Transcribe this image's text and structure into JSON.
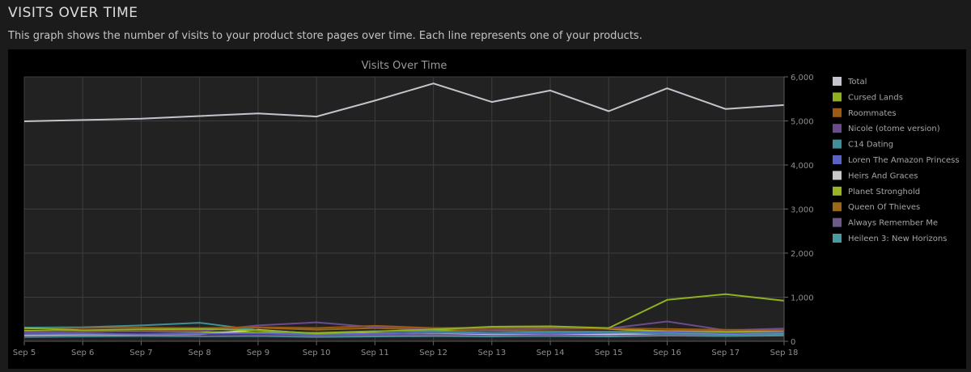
{
  "header": {
    "title": "VISITS OVER TIME",
    "description": "This graph shows the number of visits to your product store pages over time. Each line represents one of your products."
  },
  "chart_data": {
    "type": "line",
    "title": "Visits Over Time",
    "x": [
      "Sep 5",
      "Sep 6",
      "Sep 7",
      "Sep 8",
      "Sep 9",
      "Sep 10",
      "Sep 11",
      "Sep 12",
      "Sep 13",
      "Sep 14",
      "Sep 15",
      "Sep 16",
      "Sep 17",
      "Sep 18"
    ],
    "ylim": [
      0,
      6000
    ],
    "yticks": [
      0,
      1000,
      2000,
      3000,
      4000,
      5000,
      6000
    ],
    "ytick_labels": [
      "0",
      "1,000",
      "2,000",
      "3,000",
      "4,000",
      "5,000",
      "6,000"
    ],
    "y_axis_side": "right",
    "grid": true,
    "legend": "right",
    "series": [
      {
        "name": "Total",
        "color": "#c4c4cc",
        "values": [
          4990,
          5020,
          5050,
          5110,
          5170,
          5100,
          5460,
          5850,
          5430,
          5690,
          5220,
          5740,
          5270,
          5360
        ]
      },
      {
        "name": "Cursed Lands",
        "color": "#8fb021",
        "values": [
          300,
          250,
          270,
          280,
          250,
          180,
          220,
          270,
          330,
          340,
          300,
          940,
          1070,
          920
        ]
      },
      {
        "name": "Roommates",
        "color": "#9c5a14",
        "values": [
          290,
          300,
          310,
          300,
          320,
          300,
          350,
          300,
          300,
          310,
          290,
          280,
          260,
          250
        ]
      },
      {
        "name": "Nicole (otome version)",
        "color": "#6a4c8c",
        "values": [
          210,
          230,
          220,
          230,
          360,
          430,
          320,
          290,
          260,
          280,
          290,
          450,
          250,
          290
        ]
      },
      {
        "name": "C14 Dating",
        "color": "#3e8f98",
        "values": [
          310,
          320,
          360,
          420,
          250,
          160,
          230,
          230,
          190,
          210,
          210,
          170,
          140,
          160
        ]
      },
      {
        "name": "Loren The Amazon Princess",
        "color": "#5a62c6",
        "values": [
          160,
          170,
          160,
          170,
          180,
          150,
          170,
          200,
          180,
          170,
          190,
          210,
          180,
          200
        ]
      },
      {
        "name": "Heirs And Graces",
        "color": "#c8c8c8",
        "values": [
          140,
          150,
          150,
          160,
          260,
          170,
          180,
          190,
          160,
          170,
          160,
          180,
          170,
          180
        ]
      },
      {
        "name": "Planet Stronghold",
        "color": "#9ab523",
        "values": [
          240,
          230,
          220,
          210,
          200,
          190,
          230,
          240,
          320,
          320,
          280,
          220,
          210,
          230
        ]
      },
      {
        "name": "Queen Of Thieves",
        "color": "#9a6818",
        "values": [
          200,
          210,
          230,
          260,
          310,
          260,
          300,
          260,
          240,
          230,
          220,
          240,
          230,
          220
        ]
      },
      {
        "name": "Always Remember Me",
        "color": "#6e5a8a",
        "values": [
          120,
          130,
          140,
          120,
          130,
          120,
          140,
          150,
          130,
          140,
          140,
          150,
          140,
          160
        ]
      },
      {
        "name": "Heileen 3: New Horizons",
        "color": "#4a9aa4",
        "values": [
          100,
          110,
          120,
          110,
          120,
          100,
          110,
          120,
          110,
          120,
          110,
          130,
          120,
          130
        ]
      }
    ]
  }
}
